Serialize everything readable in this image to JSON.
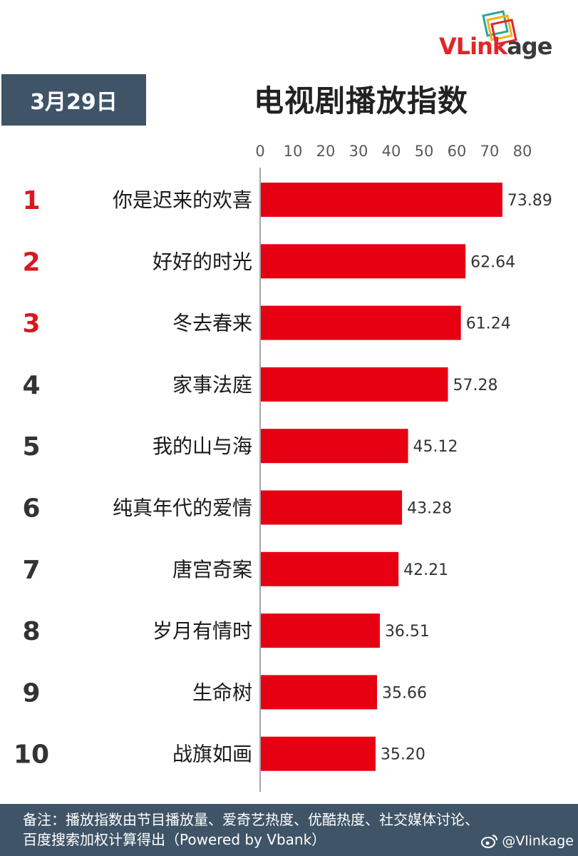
{
  "header": {
    "date": "3月29日",
    "title": "电视剧播放指数",
    "logo_main": "VLink",
    "logo_tail": "age"
  },
  "colors": {
    "bar": "#e60012",
    "rank_top": "#d7181f",
    "rank_other": "#333333",
    "panel": "#3f5467"
  },
  "chart_data": {
    "type": "bar",
    "orientation": "horizontal",
    "ranks": [
      "1",
      "2",
      "3",
      "4",
      "5",
      "6",
      "7",
      "8",
      "9",
      "10"
    ],
    "categories": [
      "你是迟来的欢喜",
      "好好的时光",
      "冬去春来",
      "家事法庭",
      "我的山与海",
      "纯真年代的爱情",
      "唐宫奇案",
      "岁月有情时",
      "生命树",
      "战旗如画"
    ],
    "values": [
      73.89,
      62.64,
      61.24,
      57.28,
      45.12,
      43.28,
      42.21,
      36.51,
      35.66,
      35.2
    ],
    "value_labels": [
      "73.89",
      "62.64",
      "61.24",
      "57.28",
      "45.12",
      "43.28",
      "42.21",
      "36.51",
      "35.66",
      "35.20"
    ],
    "xlim": [
      0,
      80
    ],
    "ticks": [
      "0",
      "10",
      "20",
      "30",
      "40",
      "50",
      "60",
      "70",
      "80"
    ],
    "axis_position": "top",
    "grid": false
  },
  "footer": {
    "note": "备注：播放指数由节目播放量、爱奇艺热度、优酷热度、社交媒体讨论、百度搜索加权计算得出（Powered by Vbank）",
    "weibo": "@Vlinkage",
    "weibo_icon": "weibo-icon"
  }
}
